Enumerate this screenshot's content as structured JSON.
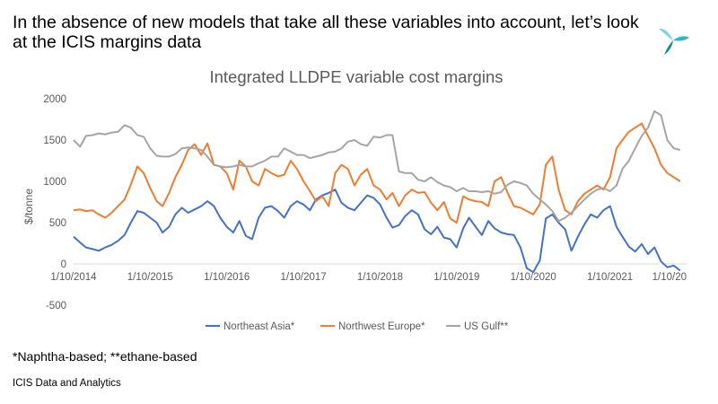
{
  "headline": "In the absence of new models that take all these variables into account, let’s look at the ICIS margins data",
  "footnote": "*Naphtha-based; **ethane-based",
  "source": "ICIS Data and Analytics",
  "logo": {
    "icon": "icis-pinwheel-logo",
    "colors": [
      "#7fd3e8",
      "#2eb6c4",
      "#0f8f8f"
    ]
  },
  "chart_data": {
    "type": "line",
    "title": "Integrated LLDPE variable cost margins",
    "ylabel": "$/tonne",
    "xlabel": "",
    "ylim": [
      -500,
      2000
    ],
    "yticks": [
      -500,
      0,
      500,
      1000,
      1500,
      2000
    ],
    "xlim": [
      "2014-01-10",
      "2022-01-10"
    ],
    "xticks": [
      "1/10/2014",
      "1/10/2015",
      "1/10/2016",
      "1/10/2017",
      "1/10/2018",
      "1/10/2019",
      "1/10/2020",
      "1/10/2021",
      "1/10/20"
    ],
    "grid": false,
    "legend_position": "bottom",
    "series": [
      {
        "name": "Northeast Asia*",
        "color": "#4472c4",
        "x": [
          "2014-01-10",
          "2014-02-10",
          "2014-03-10",
          "2014-04-10",
          "2014-05-10",
          "2014-06-10",
          "2014-07-10",
          "2014-08-10",
          "2014-09-10",
          "2014-10-10",
          "2014-11-10",
          "2014-12-10",
          "2015-01-10",
          "2015-02-10",
          "2015-03-10",
          "2015-04-10",
          "2015-05-10",
          "2015-06-10",
          "2015-07-10",
          "2015-08-10",
          "2015-09-10",
          "2015-10-10",
          "2015-11-10",
          "2015-12-10",
          "2016-01-10",
          "2016-02-10",
          "2016-03-10",
          "2016-04-10",
          "2016-05-10",
          "2016-06-10",
          "2016-07-10",
          "2016-08-10",
          "2016-09-10",
          "2016-10-10",
          "2016-11-10",
          "2016-12-10",
          "2017-01-10",
          "2017-02-10",
          "2017-03-10",
          "2017-04-10",
          "2017-05-10",
          "2017-06-10",
          "2017-07-10",
          "2017-08-10",
          "2017-09-10",
          "2017-10-10",
          "2017-11-10",
          "2017-12-10",
          "2018-01-10",
          "2018-02-10",
          "2018-03-10",
          "2018-04-10",
          "2018-05-10",
          "2018-06-10",
          "2018-07-10",
          "2018-08-10",
          "2018-09-10",
          "2018-10-10",
          "2018-11-10",
          "2018-12-10",
          "2019-01-10",
          "2019-02-10",
          "2019-03-10",
          "2019-04-10",
          "2019-05-10",
          "2019-06-10",
          "2019-07-10",
          "2019-08-10",
          "2019-09-10",
          "2019-10-10",
          "2019-11-10",
          "2019-12-10",
          "2020-01-10",
          "2020-02-10",
          "2020-03-10",
          "2020-04-10",
          "2020-05-10",
          "2020-06-10",
          "2020-07-10",
          "2020-08-10",
          "2020-09-10",
          "2020-10-10",
          "2020-11-10",
          "2020-12-10",
          "2021-01-10",
          "2021-02-10",
          "2021-03-10",
          "2021-04-10",
          "2021-05-10",
          "2021-06-10",
          "2021-07-10",
          "2021-08-10",
          "2021-09-10",
          "2021-10-10",
          "2021-11-10",
          "2021-12-10"
        ],
        "values": [
          330,
          260,
          200,
          180,
          160,
          200,
          230,
          280,
          350,
          500,
          640,
          620,
          560,
          500,
          380,
          450,
          600,
          680,
          620,
          660,
          700,
          760,
          700,
          560,
          450,
          380,
          520,
          340,
          300,
          560,
          680,
          700,
          640,
          560,
          700,
          760,
          720,
          650,
          780,
          830,
          860,
          900,
          740,
          680,
          650,
          740,
          830,
          800,
          720,
          560,
          440,
          470,
          580,
          650,
          600,
          420,
          360,
          450,
          320,
          300,
          200,
          430,
          560,
          450,
          350,
          520,
          430,
          380,
          360,
          350,
          200,
          -50,
          -100,
          40,
          550,
          600,
          500,
          420,
          160,
          330,
          480,
          600,
          560,
          650,
          700,
          450,
          330,
          210,
          150,
          240,
          120,
          200,
          30,
          -40,
          -20,
          -80
        ]
      },
      {
        "name": "Northwest Europe*",
        "color": "#ed7d31",
        "x": [
          "2014-01-10",
          "2014-02-10",
          "2014-03-10",
          "2014-04-10",
          "2014-05-10",
          "2014-06-10",
          "2014-07-10",
          "2014-08-10",
          "2014-09-10",
          "2014-10-10",
          "2014-11-10",
          "2014-12-10",
          "2015-01-10",
          "2015-02-10",
          "2015-03-10",
          "2015-04-10",
          "2015-05-10",
          "2015-06-10",
          "2015-07-10",
          "2015-08-10",
          "2015-09-10",
          "2015-10-10",
          "2015-11-10",
          "2015-12-10",
          "2016-01-10",
          "2016-02-10",
          "2016-03-10",
          "2016-04-10",
          "2016-05-10",
          "2016-06-10",
          "2016-07-10",
          "2016-08-10",
          "2016-09-10",
          "2016-10-10",
          "2016-11-10",
          "2016-12-10",
          "2017-01-10",
          "2017-02-10",
          "2017-03-10",
          "2017-04-10",
          "2017-05-10",
          "2017-06-10",
          "2017-07-10",
          "2017-08-10",
          "2017-09-10",
          "2017-10-10",
          "2017-11-10",
          "2017-12-10",
          "2018-01-10",
          "2018-02-10",
          "2018-03-10",
          "2018-04-10",
          "2018-05-10",
          "2018-06-10",
          "2018-07-10",
          "2018-08-10",
          "2018-09-10",
          "2018-10-10",
          "2018-11-10",
          "2018-12-10",
          "2019-01-10",
          "2019-02-10",
          "2019-03-10",
          "2019-04-10",
          "2019-05-10",
          "2019-06-10",
          "2019-07-10",
          "2019-08-10",
          "2019-09-10",
          "2019-10-10",
          "2019-11-10",
          "2019-12-10",
          "2020-01-10",
          "2020-02-10",
          "2020-03-10",
          "2020-04-10",
          "2020-05-10",
          "2020-06-10",
          "2020-07-10",
          "2020-08-10",
          "2020-09-10",
          "2020-10-10",
          "2020-11-10",
          "2020-12-10",
          "2021-01-10",
          "2021-02-10",
          "2021-03-10",
          "2021-04-10",
          "2021-05-10",
          "2021-06-10",
          "2021-07-10",
          "2021-08-10",
          "2021-09-10",
          "2021-10-10",
          "2021-11-10",
          "2021-12-10"
        ],
        "values": [
          650,
          660,
          640,
          650,
          600,
          560,
          620,
          700,
          780,
          960,
          1180,
          1100,
          920,
          760,
          700,
          860,
          1050,
          1200,
          1380,
          1450,
          1320,
          1460,
          1200,
          1180,
          1100,
          900,
          1250,
          1180,
          1000,
          950,
          1150,
          1100,
          1060,
          1080,
          1250,
          1150,
          1000,
          880,
          760,
          820,
          700,
          1100,
          1200,
          1150,
          950,
          1080,
          1150,
          950,
          900,
          780,
          860,
          700,
          830,
          900,
          860,
          870,
          740,
          650,
          750,
          550,
          500,
          820,
          780,
          760,
          750,
          700,
          1000,
          1050,
          860,
          700,
          680,
          640,
          600,
          720,
          1200,
          1300,
          900,
          650,
          600,
          760,
          850,
          900,
          950,
          900,
          1050,
          1400,
          1500,
          1600,
          1650,
          1700,
          1550,
          1400,
          1200,
          1100,
          1050,
          1000
        ]
      },
      {
        "name": "US Gulf**",
        "color": "#a5a5a5",
        "x": [
          "2014-01-10",
          "2014-02-10",
          "2014-03-10",
          "2014-04-10",
          "2014-05-10",
          "2014-06-10",
          "2014-07-10",
          "2014-08-10",
          "2014-09-10",
          "2014-10-10",
          "2014-11-10",
          "2014-12-10",
          "2015-01-10",
          "2015-02-10",
          "2015-03-10",
          "2015-04-10",
          "2015-05-10",
          "2015-06-10",
          "2015-07-10",
          "2015-08-10",
          "2015-09-10",
          "2015-10-10",
          "2015-11-10",
          "2015-12-10",
          "2016-01-10",
          "2016-02-10",
          "2016-03-10",
          "2016-04-10",
          "2016-05-10",
          "2016-06-10",
          "2016-07-10",
          "2016-08-10",
          "2016-09-10",
          "2016-10-10",
          "2016-11-10",
          "2016-12-10",
          "2017-01-10",
          "2017-02-10",
          "2017-03-10",
          "2017-04-10",
          "2017-05-10",
          "2017-06-10",
          "2017-07-10",
          "2017-08-10",
          "2017-09-10",
          "2017-10-10",
          "2017-11-10",
          "2017-12-10",
          "2018-01-10",
          "2018-02-10",
          "2018-03-10",
          "2018-04-10",
          "2018-05-10",
          "2018-06-10",
          "2018-07-10",
          "2018-08-10",
          "2018-09-10",
          "2018-10-10",
          "2018-11-10",
          "2018-12-10",
          "2019-01-10",
          "2019-02-10",
          "2019-03-10",
          "2019-04-10",
          "2019-05-10",
          "2019-06-10",
          "2019-07-10",
          "2019-08-10",
          "2019-09-10",
          "2019-10-10",
          "2019-11-10",
          "2019-12-10",
          "2020-01-10",
          "2020-02-10",
          "2020-03-10",
          "2020-04-10",
          "2020-05-10",
          "2020-06-10",
          "2020-07-10",
          "2020-08-10",
          "2020-09-10",
          "2020-10-10",
          "2020-11-10",
          "2020-12-10",
          "2021-01-10",
          "2021-02-10",
          "2021-03-10",
          "2021-04-10",
          "2021-05-10",
          "2021-06-10",
          "2021-07-10",
          "2021-08-10",
          "2021-09-10",
          "2021-10-10",
          "2021-11-10",
          "2021-12-10"
        ],
        "values": [
          1500,
          1420,
          1550,
          1560,
          1580,
          1570,
          1590,
          1600,
          1680,
          1650,
          1560,
          1540,
          1400,
          1310,
          1300,
          1300,
          1330,
          1400,
          1410,
          1400,
          1380,
          1300,
          1200,
          1180,
          1170,
          1180,
          1200,
          1180,
          1180,
          1220,
          1250,
          1300,
          1300,
          1400,
          1360,
          1320,
          1320,
          1280,
          1300,
          1320,
          1350,
          1360,
          1400,
          1480,
          1500,
          1450,
          1430,
          1540,
          1530,
          1560,
          1560,
          1120,
          1100,
          1100,
          1020,
          1000,
          1050,
          990,
          950,
          930,
          880,
          920,
          880,
          880,
          870,
          880,
          850,
          870,
          960,
          1000,
          980,
          950,
          850,
          780,
          720,
          640,
          520,
          560,
          620,
          700,
          780,
          850,
          900,
          920,
          880,
          950,
          1150,
          1250,
          1400,
          1550,
          1650,
          1850,
          1800,
          1500,
          1400,
          1380
        ]
      }
    ]
  }
}
